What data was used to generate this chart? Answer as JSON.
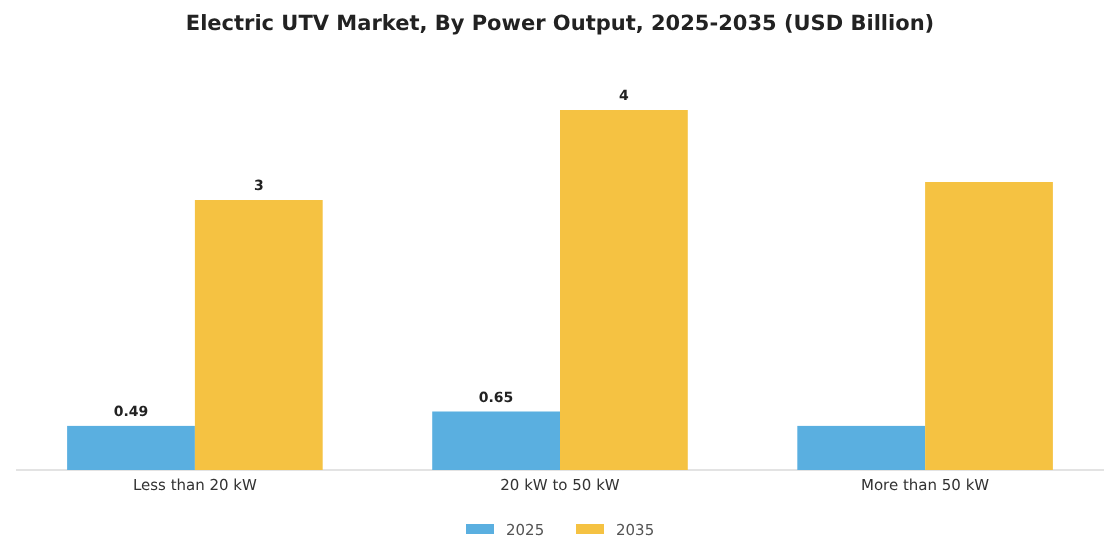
{
  "chart_data": {
    "type": "bar",
    "title": "Electric UTV Market, By Power Output, 2025-2035 (USD Billion)",
    "categories": [
      "Less than 20 kW",
      "20 kW to 50 kW",
      "More than 50 kW"
    ],
    "series": [
      {
        "name": "2025",
        "color": "#5aafe0",
        "values": [
          0.49,
          0.65,
          0.49
        ],
        "value_labels": [
          "0.49",
          "0.65",
          null
        ]
      },
      {
        "name": "2035",
        "color": "#f5c242",
        "values": [
          3,
          4,
          3.2
        ],
        "value_labels": [
          "3",
          "4",
          null
        ]
      }
    ],
    "legend": "bottom"
  }
}
